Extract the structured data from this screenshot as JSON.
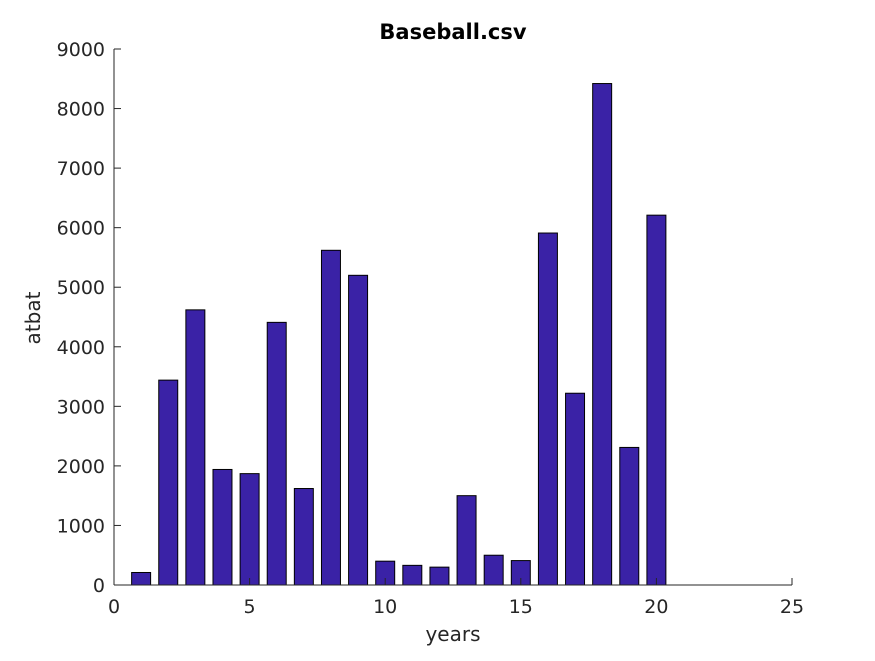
{
  "chart_data": {
    "type": "bar",
    "title": "Baseball.csv",
    "xlabel": "years",
    "ylabel": "atbat",
    "x": [
      1,
      2,
      3,
      4,
      5,
      6,
      7,
      8,
      9,
      10,
      11,
      12,
      13,
      14,
      15,
      16,
      17,
      18,
      19,
      20
    ],
    "values": [
      210,
      3440,
      4620,
      1940,
      1870,
      4410,
      1620,
      5620,
      5200,
      400,
      330,
      300,
      1500,
      500,
      410,
      5910,
      3220,
      8420,
      2310,
      6210
    ],
    "xlim": [
      0,
      25
    ],
    "ylim": [
      0,
      9000
    ],
    "xticks": [
      "0",
      "5",
      "10",
      "15",
      "20",
      "25"
    ],
    "yticks": [
      "0",
      "1000",
      "2000",
      "3000",
      "4000",
      "5000",
      "6000",
      "7000",
      "8000",
      "9000"
    ],
    "bar_color": "#3a22a6",
    "bar_edge_color": "#000000",
    "grid": false,
    "legend": "none"
  }
}
